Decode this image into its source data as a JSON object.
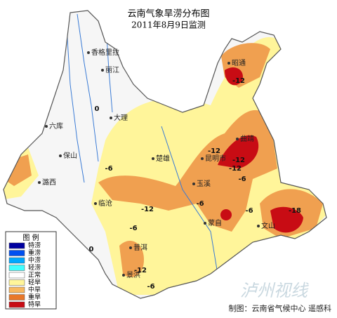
{
  "header": {
    "title": "云南气象旱涝分布图",
    "subtitle": "2011年8月9日监测"
  },
  "cities": [
    "香格里拉",
    "丽江",
    "大理",
    "六库",
    "保山",
    "潞西",
    "临沧",
    "楚雄",
    "昆明市",
    "玉溪",
    "蒙自",
    "文山",
    "普洱",
    "景洪",
    "曲靖",
    "昭通"
  ],
  "contours": [
    "0",
    "-6",
    "-12",
    "-6",
    "-12",
    "-12",
    "-6",
    "-6",
    "-12",
    "-6",
    "-18",
    "-12",
    "0",
    "-6",
    "-12"
  ],
  "legend": {
    "title": "图 例",
    "items": [
      {
        "label": "特涝",
        "color": "#0000a0"
      },
      {
        "label": "重涝",
        "color": "#0050f0"
      },
      {
        "label": "中涝",
        "color": "#00a8ff"
      },
      {
        "label": "轻涝",
        "color": "#40ffff"
      },
      {
        "label": "正常",
        "color": "#ffffff"
      },
      {
        "label": "轻旱",
        "color": "#fff59a"
      },
      {
        "label": "中旱",
        "color": "#f8b860"
      },
      {
        "label": "重旱",
        "color": "#e8782a"
      },
      {
        "label": "特旱",
        "color": "#c80c14"
      }
    ]
  },
  "footer": "制图：云南省气候中心 遥感科",
  "watermark": "泸州视线"
}
